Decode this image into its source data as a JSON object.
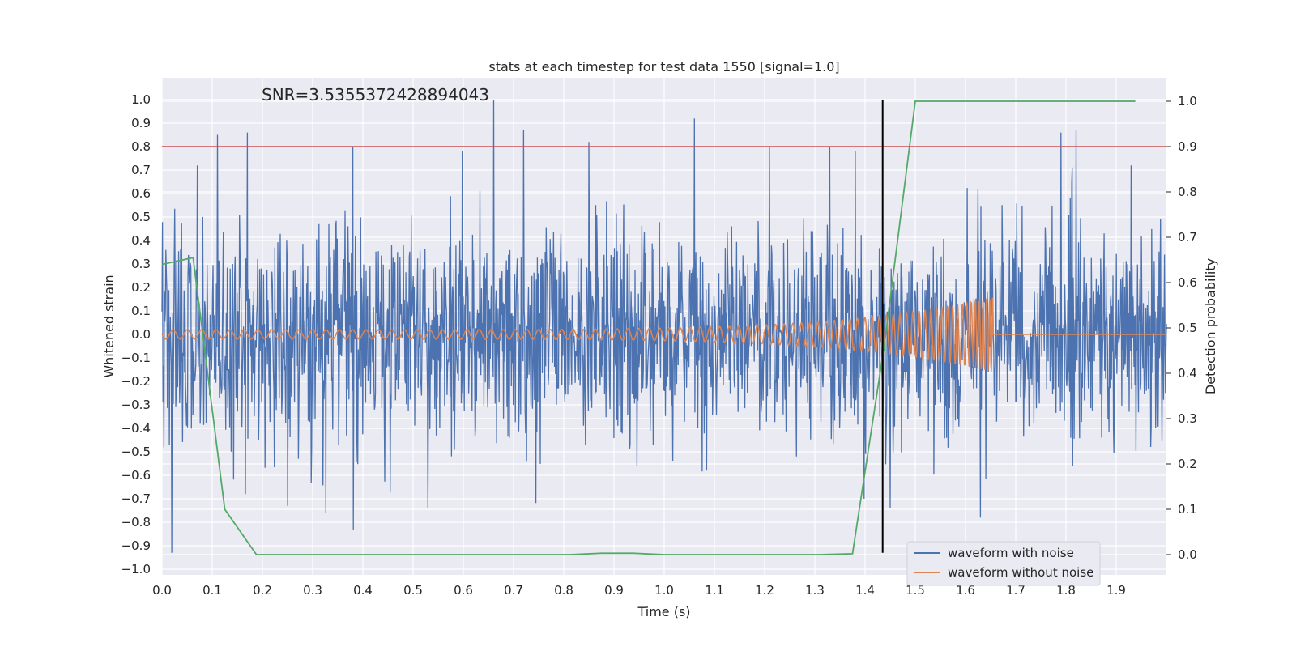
{
  "chart_data": {
    "type": "line",
    "title": "stats at each timestep for test data 1550 [signal=1.0]",
    "xlabel": "Time (s)",
    "ylabel": "Whitened strain",
    "y2label": "Detection probability",
    "annotation": "SNR=3.5355372428894043",
    "xlim": [
      0.0,
      2.0
    ],
    "ylim": [
      -1.04,
      1.1
    ],
    "y2lim": [
      -0.05,
      1.05
    ],
    "xticks": [
      "0.0",
      "0.1",
      "0.2",
      "0.3",
      "0.4",
      "0.5",
      "0.6",
      "0.7",
      "0.8",
      "0.9",
      "1.0",
      "1.1",
      "1.2",
      "1.3",
      "1.4",
      "1.5",
      "1.6",
      "1.7",
      "1.8",
      "1.9"
    ],
    "yticks": [
      "1.0",
      "0.9",
      "0.8",
      "0.7",
      "0.6",
      "0.5",
      "0.4",
      "0.3",
      "0.2",
      "0.1",
      "0.0",
      "−0.1",
      "−0.2",
      "−0.3",
      "−0.4",
      "−0.5",
      "−0.6",
      "−0.7",
      "−0.8",
      "−0.9",
      "−1.0"
    ],
    "y2ticks": [
      "1.0",
      "0.9",
      "0.8",
      "0.7",
      "0.6",
      "0.5",
      "0.4",
      "0.3",
      "0.2",
      "0.1",
      "0.0"
    ],
    "grid": true,
    "legend_position": "lower-right",
    "series": [
      {
        "name": "waveform with noise",
        "axis": "left",
        "color": "#4c72b0",
        "description_samples": "dense noise between about -0.93 and 1.0",
        "peaks_x": [
          0.02,
          0.07,
          0.11,
          0.17,
          0.25,
          0.38,
          0.53,
          0.66,
          0.72,
          0.85,
          1.06,
          1.21,
          1.33,
          1.45,
          1.63,
          1.79,
          1.82,
          1.93
        ],
        "peaks_y": [
          -0.93,
          0.72,
          0.85,
          0.86,
          -0.73,
          0.8,
          -0.74,
          1.0,
          0.87,
          0.82,
          0.92,
          0.8,
          0.8,
          -0.74,
          -0.78,
          0.86,
          0.87,
          0.72
        ]
      },
      {
        "name": "waveform without noise",
        "axis": "left",
        "color": "#dd8452",
        "chirp_start": 0.0,
        "chirp_end": 1.655,
        "start_amplitude": 0.02,
        "end_amplitude": 0.16
      },
      {
        "axis": "right",
        "color": "#55a868",
        "x": [
          0.0,
          0.062,
          0.125,
          0.188,
          0.25,
          0.312,
          0.375,
          0.438,
          0.5,
          0.562,
          0.625,
          0.688,
          0.75,
          0.812,
          0.875,
          0.938,
          1.0,
          1.062,
          1.125,
          1.188,
          1.25,
          1.312,
          1.375,
          1.438,
          1.5,
          1.562,
          1.625,
          1.688,
          1.75,
          1.812,
          1.875,
          1.938
        ],
        "values": [
          0.64,
          0.655,
          0.1,
          0.0,
          0.0,
          0.0,
          0.0,
          0.0,
          0.0,
          0.0,
          0.0,
          0.0,
          0.0,
          0.0,
          0.003,
          0.003,
          0.0,
          0.0,
          0.0,
          0.0,
          0.0,
          0.0,
          0.002,
          0.46,
          1.0,
          1.0,
          1.0,
          1.0,
          1.0,
          1.0,
          1.0,
          1.0
        ]
      },
      {
        "axis": "right",
        "color": "#c44e52",
        "type": "hline",
        "value": 0.9
      },
      {
        "axis": "left",
        "color": "#000000",
        "type": "vline",
        "x": 1.435,
        "y_range": [
          -0.93,
          1.0
        ]
      }
    ]
  }
}
